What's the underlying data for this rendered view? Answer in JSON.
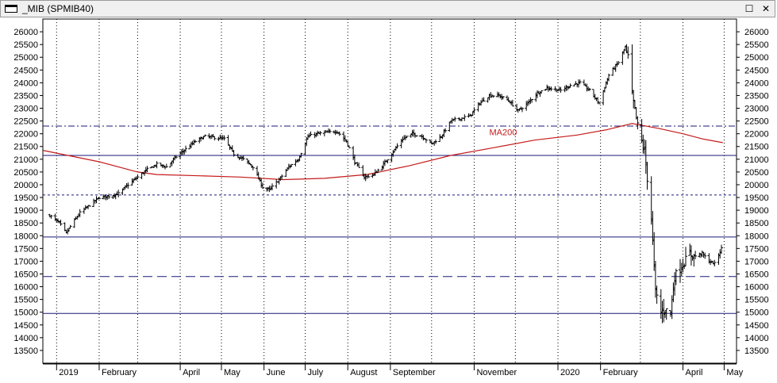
{
  "window": {
    "title": "_MIB (SPMIB40)",
    "maximize_glyph": "☐",
    "close_glyph": "✕"
  },
  "colors": {
    "price": "#000000",
    "ma": "#c41a1a",
    "level_line": "#1a1a7a",
    "background": "#ffffff"
  },
  "chart_data": {
    "type": "bar",
    "subtype": "ohlc",
    "ylim": [
      13000,
      26500
    ],
    "yticks": [
      13500,
      14000,
      14500,
      15000,
      15500,
      16000,
      16500,
      17000,
      17500,
      18000,
      18500,
      19000,
      19500,
      20000,
      20500,
      21000,
      21500,
      22000,
      22500,
      23000,
      23500,
      24000,
      24500,
      25000,
      25500,
      26000
    ],
    "xlim": [
      "2018-12-22",
      "2020-05-10"
    ],
    "x_labels": [
      {
        "date": "2019-01-01",
        "label": "2019"
      },
      {
        "date": "2019-02-01",
        "label": "February"
      },
      {
        "date": "2019-04-01",
        "label": "April"
      },
      {
        "date": "2019-05-01",
        "label": "May"
      },
      {
        "date": "2019-06-01",
        "label": "June"
      },
      {
        "date": "2019-07-01",
        "label": "July"
      },
      {
        "date": "2019-08-01",
        "label": "August"
      },
      {
        "date": "2019-09-01",
        "label": "September"
      },
      {
        "date": "2019-11-01",
        "label": "November"
      },
      {
        "date": "2020-01-01",
        "label": "2020"
      },
      {
        "date": "2020-02-01",
        "label": "February"
      },
      {
        "date": "2020-04-01",
        "label": "April"
      },
      {
        "date": "2020-05-01",
        "label": "May"
      }
    ],
    "grid_dates": [
      "2019-01-01",
      "2019-02-01",
      "2019-03-01",
      "2019-04-01",
      "2019-05-01",
      "2019-06-01",
      "2019-07-01",
      "2019-08-01",
      "2019-09-01",
      "2019-10-01",
      "2019-11-01",
      "2019-12-01",
      "2020-01-01",
      "2020-02-01",
      "2020-03-01",
      "2020-04-01",
      "2020-05-01"
    ],
    "levels": [
      {
        "value": 22300,
        "style": "dashdot"
      },
      {
        "value": 21150,
        "style": "solid"
      },
      {
        "value": 19600,
        "style": "dotted"
      },
      {
        "value": 17950,
        "style": "solid"
      },
      {
        "value": 16400,
        "style": "dashed"
      },
      {
        "value": 14950,
        "style": "solid"
      }
    ],
    "ma_label": "MA200",
    "ma_label_at": {
      "date": "2019-11-12",
      "value": 21950
    },
    "price_path": [
      [
        "2018-12-27",
        18800
      ],
      [
        "2019-01-03",
        18500
      ],
      [
        "2019-01-08",
        18100
      ],
      [
        "2019-01-12",
        18450
      ],
      [
        "2019-01-18",
        18900
      ],
      [
        "2019-01-25",
        19200
      ],
      [
        "2019-02-01",
        19500
      ],
      [
        "2019-02-08",
        19550
      ],
      [
        "2019-02-15",
        19650
      ],
      [
        "2019-02-22",
        20000
      ],
      [
        "2019-03-01",
        20300
      ],
      [
        "2019-03-08",
        20600
      ],
      [
        "2019-03-15",
        20800
      ],
      [
        "2019-03-22",
        20700
      ],
      [
        "2019-03-29",
        21100
      ],
      [
        "2019-04-05",
        21400
      ],
      [
        "2019-04-12",
        21700
      ],
      [
        "2019-04-19",
        21900
      ],
      [
        "2019-04-26",
        21850
      ],
      [
        "2019-05-03",
        21800
      ],
      [
        "2019-05-10",
        21200
      ],
      [
        "2019-05-17",
        21000
      ],
      [
        "2019-05-24",
        20700
      ],
      [
        "2019-05-31",
        19900
      ],
      [
        "2019-06-05",
        19800
      ],
      [
        "2019-06-12",
        20200
      ],
      [
        "2019-06-19",
        20700
      ],
      [
        "2019-06-26",
        21000
      ],
      [
        "2019-07-03",
        21900
      ],
      [
        "2019-07-10",
        22000
      ],
      [
        "2019-07-17",
        22050
      ],
      [
        "2019-07-24",
        22100
      ],
      [
        "2019-07-31",
        21700
      ],
      [
        "2019-08-06",
        20900
      ],
      [
        "2019-08-13",
        20300
      ],
      [
        "2019-08-20",
        20400
      ],
      [
        "2019-08-27",
        20800
      ],
      [
        "2019-09-03",
        21300
      ],
      [
        "2019-09-10",
        21800
      ],
      [
        "2019-09-17",
        22000
      ],
      [
        "2019-09-24",
        21900
      ],
      [
        "2019-10-01",
        21600
      ],
      [
        "2019-10-08",
        21900
      ],
      [
        "2019-10-15",
        22500
      ],
      [
        "2019-10-22",
        22600
      ],
      [
        "2019-10-29",
        22700
      ],
      [
        "2019-11-05",
        23200
      ],
      [
        "2019-11-12",
        23500
      ],
      [
        "2019-11-19",
        23500
      ],
      [
        "2019-11-26",
        23300
      ],
      [
        "2019-12-03",
        22900
      ],
      [
        "2019-12-10",
        23200
      ],
      [
        "2019-12-17",
        23600
      ],
      [
        "2019-12-24",
        23800
      ],
      [
        "2020-01-03",
        23700
      ],
      [
        "2020-01-10",
        23900
      ],
      [
        "2020-01-17",
        24000
      ],
      [
        "2020-01-24",
        23700
      ],
      [
        "2020-01-31",
        23200
      ],
      [
        "2020-02-07",
        24300
      ],
      [
        "2020-02-14",
        24800
      ],
      [
        "2020-02-19",
        25400
      ],
      [
        "2020-02-21",
        25000
      ],
      [
        "2020-02-24",
        23500
      ],
      [
        "2020-02-28",
        22300
      ],
      [
        "2020-03-04",
        21300
      ],
      [
        "2020-03-09",
        18700
      ],
      [
        "2020-03-12",
        15800
      ],
      [
        "2020-03-16",
        15000
      ],
      [
        "2020-03-19",
        15100
      ],
      [
        "2020-03-23",
        15000
      ],
      [
        "2020-03-26",
        16400
      ],
      [
        "2020-03-31",
        16800
      ],
      [
        "2020-04-06",
        17300
      ],
      [
        "2020-04-09",
        17200
      ],
      [
        "2020-04-15",
        17300
      ],
      [
        "2020-04-20",
        17000
      ],
      [
        "2020-04-24",
        16900
      ],
      [
        "2020-04-29",
        17500
      ]
    ],
    "ma_path": [
      [
        "2018-12-22",
        21350
      ],
      [
        "2019-02-01",
        20900
      ],
      [
        "2019-03-01",
        20500
      ],
      [
        "2019-03-15",
        20400
      ],
      [
        "2019-04-15",
        20350
      ],
      [
        "2019-05-15",
        20300
      ],
      [
        "2019-06-15",
        20200
      ],
      [
        "2019-07-15",
        20250
      ],
      [
        "2019-08-15",
        20400
      ],
      [
        "2019-09-15",
        20750
      ],
      [
        "2019-10-15",
        21150
      ],
      [
        "2019-11-15",
        21450
      ],
      [
        "2019-12-15",
        21750
      ],
      [
        "2020-01-15",
        21950
      ],
      [
        "2020-02-05",
        22150
      ],
      [
        "2020-02-24",
        22400
      ],
      [
        "2020-03-15",
        22200
      ],
      [
        "2020-04-01",
        22000
      ],
      [
        "2020-04-15",
        21800
      ],
      [
        "2020-04-30",
        21650
      ]
    ]
  }
}
